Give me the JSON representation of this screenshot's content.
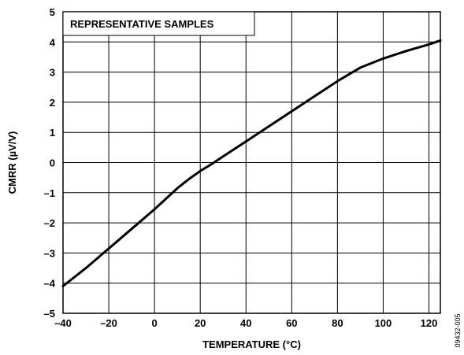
{
  "chart_data": {
    "type": "line",
    "title": "",
    "xlabel": "TEMPERATURE (°C)",
    "ylabel": "CMRR (µV/V)",
    "xlim": [
      -40,
      125
    ],
    "ylim": [
      -5,
      5
    ],
    "x_ticks": [
      -40,
      -20,
      0,
      20,
      40,
      60,
      80,
      100,
      120
    ],
    "x_tick_labels": [
      "–40",
      "–20",
      "0",
      "20",
      "40",
      "60",
      "80",
      "100",
      "120"
    ],
    "y_ticks": [
      5,
      4,
      3,
      2,
      1,
      0,
      -1,
      -2,
      -3,
      -4,
      -5
    ],
    "y_tick_labels": [
      "5",
      "4",
      "3",
      "2",
      "1",
      "0",
      "–1",
      "–2",
      "–3",
      "–4",
      "–5"
    ],
    "grid": true,
    "annotation": "REPRESENTATIVE SAMPLES",
    "series": [
      {
        "x": [
          -40,
          -30,
          -20,
          -10,
          0,
          10,
          15,
          20,
          25,
          30,
          40,
          50,
          60,
          70,
          80,
          90,
          95,
          100,
          110,
          120,
          125
        ],
        "y": [
          -4.1,
          -3.5,
          -2.85,
          -2.2,
          -1.55,
          -0.85,
          -0.55,
          -0.28,
          -0.05,
          0.2,
          0.7,
          1.2,
          1.7,
          2.2,
          2.7,
          3.15,
          3.3,
          3.45,
          3.7,
          3.92,
          4.05
        ]
      }
    ]
  },
  "figure_id": "09432-005"
}
